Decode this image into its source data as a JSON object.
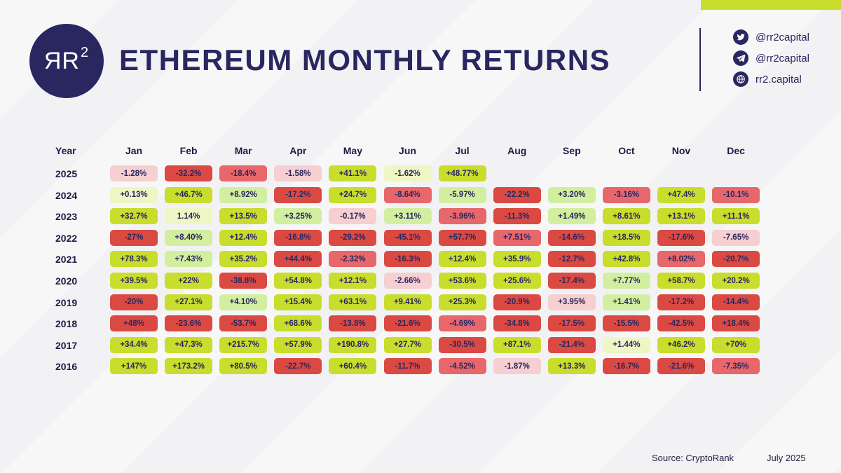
{
  "header": {
    "logo_text": "ЯR",
    "logo_sup": "2",
    "title": "ETHEREUM MONTHLY RETURNS"
  },
  "social": [
    {
      "icon": "twitter-icon",
      "text": "@rr2capital"
    },
    {
      "icon": "telegram-icon",
      "text": "@rr2capital"
    },
    {
      "icon": "globe-icon",
      "text": "rr2.capital"
    }
  ],
  "colors": {
    "brand": "#2a2660",
    "accent": "#c8dd2c",
    "strong_green": "#c8dd2c",
    "light_green": "#d2ef9f",
    "pale_green": "#eef6c4",
    "pale_red": "#f6cfd0",
    "mid_red": "#e7676b",
    "strong_red": "#da4a43"
  },
  "chart_data": {
    "type": "table",
    "title": "ETHEREUM MONTHLY RETURNS",
    "year_label": "Year",
    "months": [
      "Jan",
      "Feb",
      "Mar",
      "Apr",
      "May",
      "Jun",
      "Jul",
      "Aug",
      "Sep",
      "Oct",
      "Nov",
      "Dec"
    ],
    "rows": [
      {
        "year": "2025",
        "values": [
          "-1.28%",
          "-32.2%",
          "-18.4%",
          "-1.58%",
          "+41.1%",
          "-1.62%",
          "+48.77%",
          "",
          "",
          "",
          "",
          ""
        ]
      },
      {
        "year": "2024",
        "values": [
          "+0.13%",
          "+46.7%",
          "+8.92%",
          "-17.2%",
          "+24.7%",
          "-8.64%",
          "-5.97%",
          "-22.2%",
          "+3.20%",
          "-3.16%",
          "+47.4%",
          "-10.1%"
        ]
      },
      {
        "year": "2023",
        "values": [
          "+32.7%",
          "1.14%",
          "+13.5%",
          "+3.25%",
          "-0.17%",
          "+3.11%",
          "-3.96%",
          "-11.3%",
          "+1.49%",
          "+8.61%",
          "+13.1%",
          "+11.1%"
        ]
      },
      {
        "year": "2022",
        "values": [
          "-27%",
          "+8.40%",
          "+12.4%",
          "-16.8%",
          "-29.2%",
          "-45.1%",
          "+57.7%",
          "+7.51%",
          "-14.6%",
          "+18.5%",
          "-17.6%",
          "-7.65%"
        ]
      },
      {
        "year": "2021",
        "values": [
          "+78.3%",
          "+7.43%",
          "+35.2%",
          "+44.4%",
          "-2.32%",
          "-16.3%",
          "+12.4%",
          "+35.9%",
          "-12.7%",
          "+42.8%",
          "+8.02%",
          "-20.7%"
        ]
      },
      {
        "year": "2020",
        "values": [
          "+39.5%",
          "+22%",
          "-38.8%",
          "+54.8%",
          "+12.1%",
          "-2.66%",
          "+53.6%",
          "+25.6%",
          "-17.4%",
          "+7.77%",
          "+58.7%",
          "+20.2%"
        ]
      },
      {
        "year": "2019",
        "values": [
          "-20%",
          "+27.1%",
          "+4.10%",
          "+15.4%",
          "+63.1%",
          "+9.41%",
          "+25.3%",
          "-20.9%",
          "+3.95%",
          "+1.41%",
          "-17.2%",
          "-14.4%"
        ]
      },
      {
        "year": "2018",
        "values": [
          "+48%",
          "-23.6%",
          "-53.7%",
          "+68.6%",
          "-13.8%",
          "-21.6%",
          "-4.69%",
          "-34.8%",
          "-17.5%",
          "-15.5%",
          "-42.5%",
          "+18.4%"
        ]
      },
      {
        "year": "2017",
        "values": [
          "+34.4%",
          "+47.3%",
          "+215.7%",
          "+57.9%",
          "+190.8%",
          "+27.7%",
          "-30.5%",
          "+87.1%",
          "-21.4%",
          "+1.44%",
          "+46.2%",
          "+70%"
        ]
      },
      {
        "year": "2016",
        "values": [
          "+147%",
          "+173.2%",
          "+80.5%",
          "-22.7%",
          "+60.4%",
          "-11.7%",
          "-4.52%",
          "-1.87%",
          "+13.3%",
          "-16.7%",
          "-21.6%",
          "-7.35%"
        ]
      }
    ],
    "cell_colors": [
      [
        "pale_red",
        "strong_red",
        "mid_red",
        "pale_red",
        "strong_green",
        "pale_green",
        "strong_green",
        "",
        "",
        "",
        "",
        ""
      ],
      [
        "pale_green",
        "strong_green",
        "light_green",
        "strong_red",
        "strong_green",
        "mid_red",
        "light_green",
        "strong_red",
        "light_green",
        "mid_red",
        "strong_green",
        "mid_red"
      ],
      [
        "strong_green",
        "pale_green",
        "strong_green",
        "light_green",
        "pale_red",
        "light_green",
        "mid_red",
        "strong_red",
        "light_green",
        "strong_green",
        "strong_green",
        "strong_green"
      ],
      [
        "strong_red",
        "light_green",
        "strong_green",
        "strong_red",
        "strong_red",
        "strong_red",
        "strong_red",
        "mid_red",
        "strong_red",
        "strong_green",
        "strong_red",
        "pale_red"
      ],
      [
        "strong_green",
        "light_green",
        "strong_green",
        "strong_red",
        "mid_red",
        "strong_red",
        "strong_green",
        "strong_green",
        "strong_red",
        "strong_green",
        "mid_red",
        "strong_red"
      ],
      [
        "strong_green",
        "strong_green",
        "strong_red",
        "strong_green",
        "strong_green",
        "pale_red",
        "strong_green",
        "strong_green",
        "strong_red",
        "light_green",
        "strong_green",
        "strong_green"
      ],
      [
        "strong_red",
        "strong_green",
        "light_green",
        "strong_green",
        "strong_green",
        "strong_green",
        "strong_green",
        "strong_red",
        "pale_red",
        "light_green",
        "strong_red",
        "strong_red"
      ],
      [
        "strong_red",
        "strong_red",
        "strong_red",
        "strong_green",
        "strong_red",
        "strong_red",
        "mid_red",
        "strong_red",
        "strong_red",
        "strong_red",
        "strong_red",
        "strong_red"
      ],
      [
        "strong_green",
        "strong_green",
        "strong_green",
        "strong_green",
        "strong_green",
        "strong_green",
        "strong_red",
        "strong_green",
        "strong_red",
        "pale_green",
        "strong_green",
        "strong_green"
      ],
      [
        "strong_green",
        "strong_green",
        "strong_green",
        "strong_red",
        "strong_green",
        "strong_red",
        "mid_red",
        "pale_red",
        "strong_green",
        "strong_red",
        "strong_red",
        "mid_red"
      ]
    ]
  },
  "footer": {
    "source": "Source: CryptoRank",
    "date": "July 2025"
  }
}
